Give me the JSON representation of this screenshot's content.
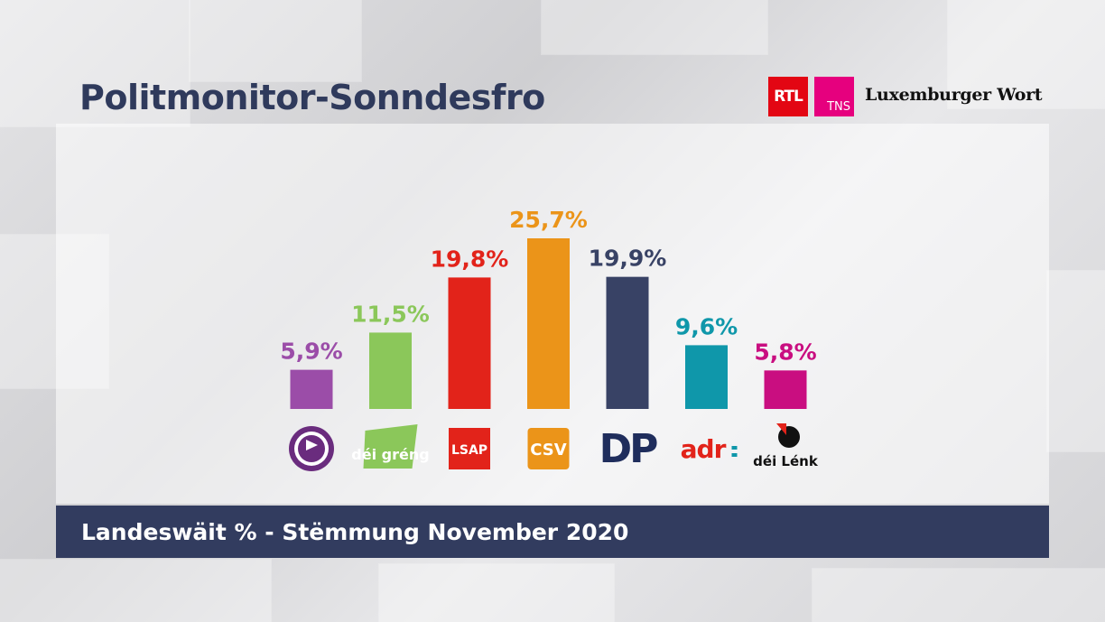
{
  "header": {
    "title": "Politmonitor-Sonndesfro",
    "logos": {
      "rtl": "RTL",
      "tns": "TNS",
      "wort": "Luxemburger Wort"
    }
  },
  "footer": {
    "caption": "Landeswäit % - Stëmmung November 2020"
  },
  "chart_data": {
    "type": "bar",
    "categories": [
      "Piraten",
      "déi gréng",
      "LSAP",
      "CSV",
      "DP",
      "adr",
      "déi Lénk"
    ],
    "values": [
      5.9,
      11.5,
      19.8,
      25.7,
      19.9,
      9.6,
      5.8
    ],
    "labels": [
      "5,9%",
      "11,5%",
      "19,8%",
      "25,7%",
      "19,9%",
      "9,6%",
      "5,8%"
    ],
    "colors": [
      "#9b4da8",
      "#8bc75a",
      "#e2231a",
      "#eb9419",
      "#384265",
      "#0f97aa",
      "#c90e80"
    ],
    "logo_text": [
      "",
      "déi gréng",
      "LSAP",
      "CSV",
      "DP",
      "adr",
      "déi Lénk"
    ],
    "title": "",
    "xlabel": "",
    "ylabel": "",
    "ylim": [
      0,
      25.7
    ],
    "grid": false,
    "legend": "none"
  }
}
